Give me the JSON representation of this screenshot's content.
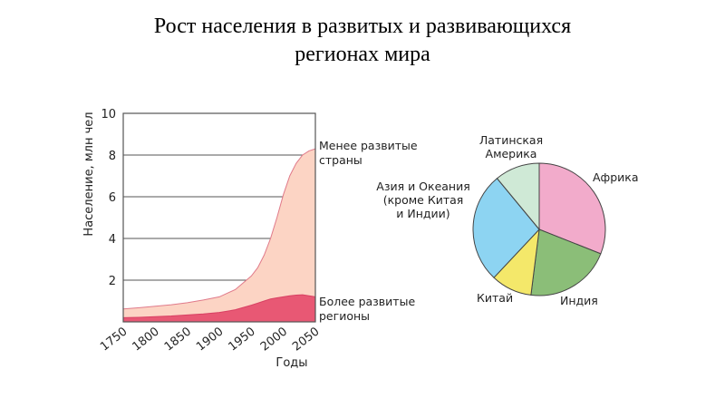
{
  "title": {
    "line1": "Рост населения в развитых и развивающихся",
    "line2": "регионах мира"
  },
  "chart_data": [
    {
      "type": "area",
      "title": "",
      "xlabel": "Годы",
      "ylabel": "Население, млн чел",
      "xlim": [
        1750,
        2050
      ],
      "ylim": [
        0,
        10
      ],
      "x_ticks": [
        "1750",
        "1800",
        "1850",
        "1900",
        "1950",
        "2000",
        "2050"
      ],
      "y_ticks": [
        "2",
        "4",
        "6",
        "8",
        "10"
      ],
      "grid": true,
      "x": [
        1750,
        1775,
        1800,
        1825,
        1850,
        1875,
        1900,
        1925,
        1950,
        1960,
        1970,
        1980,
        1990,
        2000,
        2010,
        2020,
        2030,
        2040,
        2050
      ],
      "series": [
        {
          "name": "Более развитые регионы",
          "color": "#e85874",
          "values": [
            0.2,
            0.22,
            0.25,
            0.28,
            0.33,
            0.38,
            0.45,
            0.58,
            0.8,
            0.9,
            1.0,
            1.1,
            1.15,
            1.2,
            1.25,
            1.28,
            1.3,
            1.25,
            1.2
          ]
        },
        {
          "name": "Менее развитые страны",
          "color": "#fcd4c4",
          "values": [
            0.62,
            0.68,
            0.75,
            0.82,
            0.92,
            1.05,
            1.2,
            1.55,
            2.2,
            2.6,
            3.2,
            4.0,
            5.0,
            6.1,
            7.0,
            7.6,
            8.0,
            8.2,
            8.3
          ]
        }
      ]
    },
    {
      "type": "pie",
      "title": "",
      "labels": [
        "Африка",
        "Индия",
        "Китай",
        "Азия и Океания (кроме Китая и Индии)",
        "Латинская Америка"
      ],
      "values": [
        31,
        21,
        10,
        27,
        11
      ],
      "colors": [
        "#f2abcb",
        "#8bbe78",
        "#f4e86a",
        "#8dd4f2",
        "#cfe9d6"
      ]
    }
  ],
  "labels": {
    "less_developed_1": "Менее развитые",
    "less_developed_2": "страны",
    "more_developed_1": "Более развитые",
    "more_developed_2": "регионы",
    "pie_africa": "Африка",
    "pie_india": "Индия",
    "pie_china": "Китай",
    "pie_asia_1": "Азия и Океания",
    "pie_asia_2": "(кроме Китая",
    "pie_asia_3": "и Индии)",
    "pie_latam_1": "Латинская",
    "pie_latam_2": "Америка"
  }
}
